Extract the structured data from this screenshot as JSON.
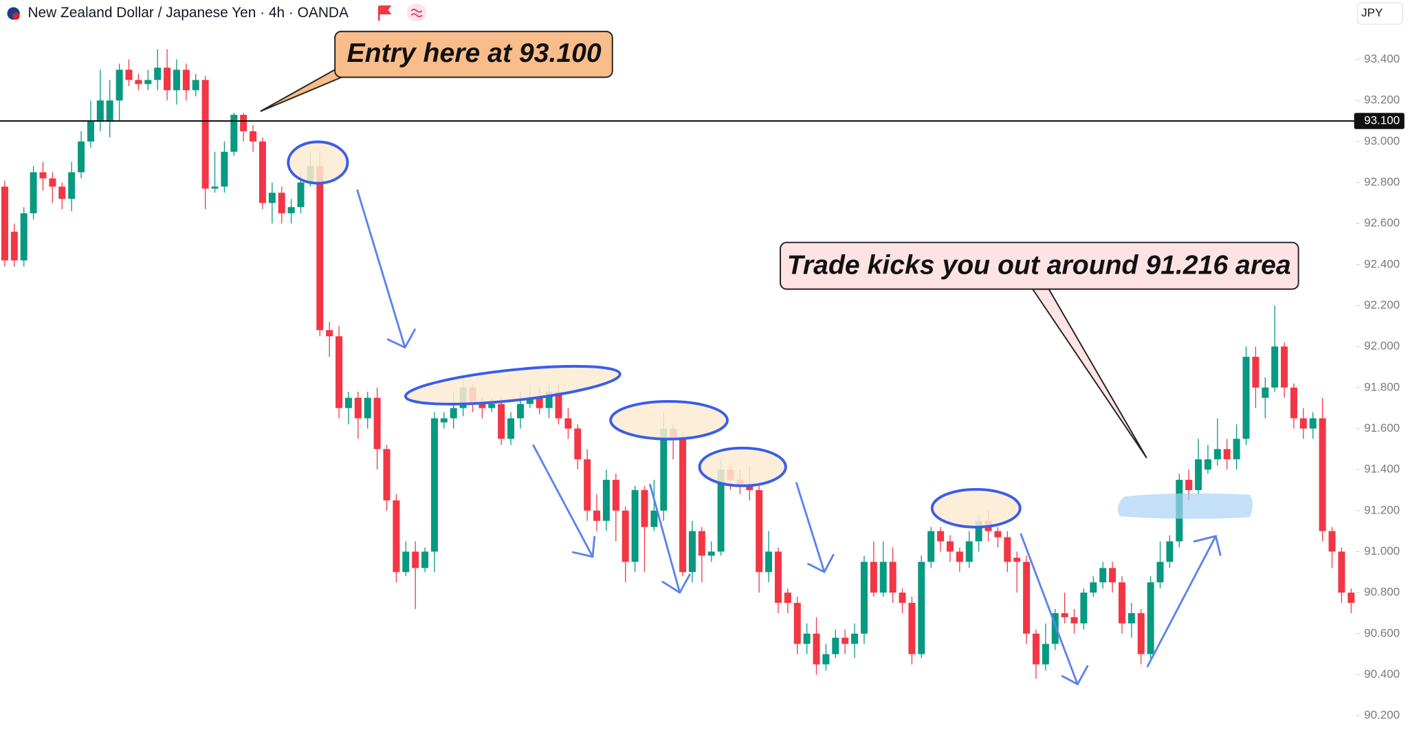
{
  "chart_data": {
    "type": "candlestick",
    "title": "New Zealand Dollar / Japanese Yen · 4h · OANDA",
    "currency": "JPY",
    "up_color": "#089981",
    "down_color": "#f23645",
    "ylim": [
      90.13,
      93.69
    ],
    "yticks": [
      {
        "value": 93.4,
        "label": "93.400"
      },
      {
        "value": 93.2,
        "label": "93.200"
      },
      {
        "value": 93.0,
        "label": "93.000"
      },
      {
        "value": 92.8,
        "label": "92.800"
      },
      {
        "value": 92.6,
        "label": "92.600"
      },
      {
        "value": 92.4,
        "label": "92.400"
      },
      {
        "value": 92.2,
        "label": "92.200"
      },
      {
        "value": 92.0,
        "label": "92.000"
      },
      {
        "value": 91.8,
        "label": "91.800"
      },
      {
        "value": 91.6,
        "label": "91.600"
      },
      {
        "value": 91.4,
        "label": "91.400"
      },
      {
        "value": 91.2,
        "label": "91.200"
      },
      {
        "value": 91.0,
        "label": "91.000"
      },
      {
        "value": 90.8,
        "label": "90.800"
      },
      {
        "value": 90.6,
        "label": "90.600"
      },
      {
        "value": 90.4,
        "label": "90.400"
      },
      {
        "value": 90.2,
        "label": "90.200"
      }
    ],
    "level": {
      "value": 93.1,
      "label": "93.100"
    },
    "annotations": [
      "Entry here at 93.100",
      "Trade kicks you out around 91.216 area"
    ],
    "open": [
      92.78,
      92.56,
      92.42,
      92.65,
      92.85,
      92.82,
      92.78,
      92.72,
      92.85,
      93.0,
      93.1,
      93.1,
      93.2,
      93.35,
      93.3,
      93.28,
      93.3,
      93.36,
      93.25,
      93.35,
      93.25,
      93.3,
      92.77,
      92.78,
      92.95,
      93.13,
      93.05,
      93.0,
      92.7,
      92.75,
      92.65,
      92.68,
      92.8,
      92.88,
      92.08,
      92.05,
      91.7,
      91.75,
      91.65,
      91.75,
      91.5,
      91.25,
      90.9,
      91.0,
      90.92,
      91.0,
      91.63,
      91.65,
      91.7,
      91.8,
      91.72,
      91.7,
      91.72,
      91.55,
      91.65,
      91.72,
      91.75,
      91.7,
      91.78,
      91.65,
      91.6,
      91.45,
      91.2,
      91.15,
      91.35,
      91.2,
      90.95,
      91.3,
      91.12,
      91.2,
      91.6,
      91.55,
      90.9,
      91.1,
      90.98,
      91.0,
      91.4,
      91.35,
      91.32,
      91.3,
      90.9,
      91.0,
      90.8,
      90.75,
      90.55,
      90.6,
      90.45,
      90.5,
      90.58,
      90.55,
      90.6,
      90.95,
      90.8,
      90.95,
      90.8,
      90.75,
      90.5,
      90.95,
      91.1,
      91.05,
      91.0,
      90.95,
      91.05,
      91.15,
      91.1,
      91.07,
      90.97,
      90.95,
      90.6,
      90.45,
      90.55,
      90.7,
      90.68,
      90.65,
      90.8,
      90.85,
      90.92,
      90.85,
      90.65,
      90.7,
      90.5,
      90.85,
      90.95,
      91.05,
      91.35,
      91.3,
      91.4,
      91.45,
      91.5,
      91.45,
      91.55,
      91.95,
      91.75,
      91.8,
      92.0,
      91.8,
      91.65,
      91.6,
      91.65,
      91.1,
      91.0,
      90.8
    ],
    "high": [
      92.81,
      92.6,
      92.68,
      92.88,
      92.9,
      92.85,
      92.8,
      92.9,
      93.05,
      93.2,
      93.35,
      93.3,
      93.38,
      93.4,
      93.33,
      93.35,
      93.45,
      93.45,
      93.4,
      93.38,
      93.33,
      93.32,
      92.95,
      93.0,
      93.14,
      93.14,
      93.08,
      93.02,
      92.8,
      92.78,
      92.72,
      92.85,
      92.95,
      92.95,
      92.12,
      92.1,
      91.78,
      91.78,
      91.78,
      91.8,
      91.52,
      91.28,
      91.05,
      91.05,
      91.02,
      91.68,
      91.68,
      91.78,
      91.85,
      91.82,
      91.75,
      91.75,
      91.75,
      91.68,
      91.78,
      91.8,
      91.8,
      91.82,
      91.82,
      91.7,
      91.62,
      91.5,
      91.28,
      91.4,
      91.38,
      91.22,
      91.32,
      91.32,
      91.35,
      91.68,
      91.62,
      91.58,
      91.15,
      91.12,
      91.05,
      91.45,
      91.42,
      91.4,
      91.42,
      91.32,
      91.1,
      91.02,
      90.82,
      90.78,
      90.65,
      90.68,
      90.55,
      90.62,
      90.62,
      90.65,
      90.98,
      91.05,
      91.05,
      91.02,
      90.82,
      90.78,
      90.98,
      91.12,
      91.12,
      91.08,
      91.02,
      91.1,
      91.18,
      91.2,
      91.12,
      91.1,
      91.0,
      90.98,
      90.62,
      90.65,
      90.72,
      90.8,
      90.72,
      90.82,
      90.88,
      90.95,
      90.95,
      90.88,
      90.75,
      90.72,
      90.88,
      91.05,
      91.08,
      91.38,
      91.4,
      91.55,
      91.52,
      91.65,
      91.55,
      91.62,
      92.0,
      92.0,
      91.85,
      92.2,
      92.02,
      91.82,
      91.7,
      91.68,
      91.75,
      91.12,
      91.02,
      90.82
    ],
    "low": [
      92.39,
      92.39,
      92.39,
      92.62,
      92.76,
      92.7,
      92.67,
      92.66,
      92.82,
      92.97,
      93.05,
      93.02,
      93.1,
      93.27,
      93.25,
      93.25,
      93.25,
      93.2,
      93.18,
      93.2,
      93.22,
      92.67,
      92.75,
      92.75,
      92.93,
      93.0,
      92.95,
      92.67,
      92.6,
      92.6,
      92.6,
      92.65,
      92.78,
      92.05,
      91.95,
      91.65,
      91.62,
      91.55,
      91.6,
      91.4,
      91.2,
      90.85,
      90.88,
      90.72,
      90.9,
      90.9,
      91.6,
      91.6,
      91.66,
      91.68,
      91.65,
      91.68,
      91.52,
      91.52,
      91.6,
      91.7,
      91.67,
      91.65,
      91.62,
      91.55,
      91.4,
      91.15,
      91.1,
      91.1,
      91.05,
      90.85,
      90.9,
      90.9,
      91.1,
      91.15,
      91.45,
      90.88,
      90.85,
      90.85,
      90.95,
      90.98,
      91.3,
      91.28,
      91.25,
      90.8,
      90.85,
      90.7,
      90.7,
      90.5,
      90.5,
      90.4,
      90.42,
      90.48,
      90.5,
      90.48,
      90.55,
      90.78,
      90.78,
      90.75,
      90.7,
      90.45,
      90.48,
      90.92,
      91.0,
      90.95,
      90.9,
      90.92,
      91.0,
      91.05,
      91.02,
      90.9,
      90.8,
      90.55,
      90.38,
      90.42,
      90.52,
      90.65,
      90.6,
      90.62,
      90.78,
      90.82,
      90.8,
      90.6,
      90.58,
      90.45,
      90.48,
      90.82,
      90.92,
      91.02,
      91.25,
      91.28,
      91.38,
      91.42,
      91.4,
      91.4,
      91.52,
      91.7,
      91.65,
      91.78,
      91.75,
      91.6,
      91.55,
      91.55,
      91.05,
      90.92,
      90.75,
      90.7
    ],
    "close": [
      92.42,
      92.42,
      92.65,
      92.85,
      92.82,
      92.78,
      92.72,
      92.85,
      93.0,
      93.1,
      93.2,
      93.2,
      93.35,
      93.3,
      93.28,
      93.3,
      93.36,
      93.25,
      93.35,
      93.25,
      93.3,
      92.77,
      92.78,
      92.95,
      93.13,
      93.05,
      93.0,
      92.7,
      92.75,
      92.65,
      92.68,
      92.8,
      92.88,
      92.08,
      92.05,
      91.7,
      91.75,
      91.65,
      91.75,
      91.5,
      91.25,
      90.9,
      91.0,
      90.92,
      91.0,
      91.65,
      91.65,
      91.7,
      91.8,
      91.72,
      91.7,
      91.72,
      91.55,
      91.65,
      91.72,
      91.75,
      91.7,
      91.78,
      91.65,
      91.6,
      91.45,
      91.2,
      91.15,
      91.35,
      91.2,
      90.95,
      91.3,
      91.12,
      91.2,
      91.6,
      91.55,
      90.9,
      91.1,
      90.98,
      91.0,
      91.4,
      91.35,
      91.32,
      91.3,
      90.9,
      91.0,
      90.75,
      90.75,
      90.55,
      90.6,
      90.45,
      90.5,
      90.58,
      90.55,
      90.6,
      90.95,
      90.8,
      90.95,
      90.8,
      90.75,
      90.5,
      90.95,
      91.1,
      91.05,
      91.0,
      90.95,
      91.05,
      91.15,
      91.1,
      91.07,
      90.95,
      90.95,
      90.6,
      90.45,
      90.55,
      90.7,
      90.68,
      90.65,
      90.8,
      90.85,
      90.92,
      90.85,
      90.65,
      90.7,
      90.5,
      90.85,
      90.95,
      91.05,
      91.35,
      91.3,
      91.45,
      91.45,
      91.5,
      91.45,
      91.55,
      91.95,
      91.8,
      91.8,
      92.0,
      91.8,
      91.65,
      91.6,
      91.65,
      91.1,
      91.0,
      90.8,
      90.75
    ]
  }
}
